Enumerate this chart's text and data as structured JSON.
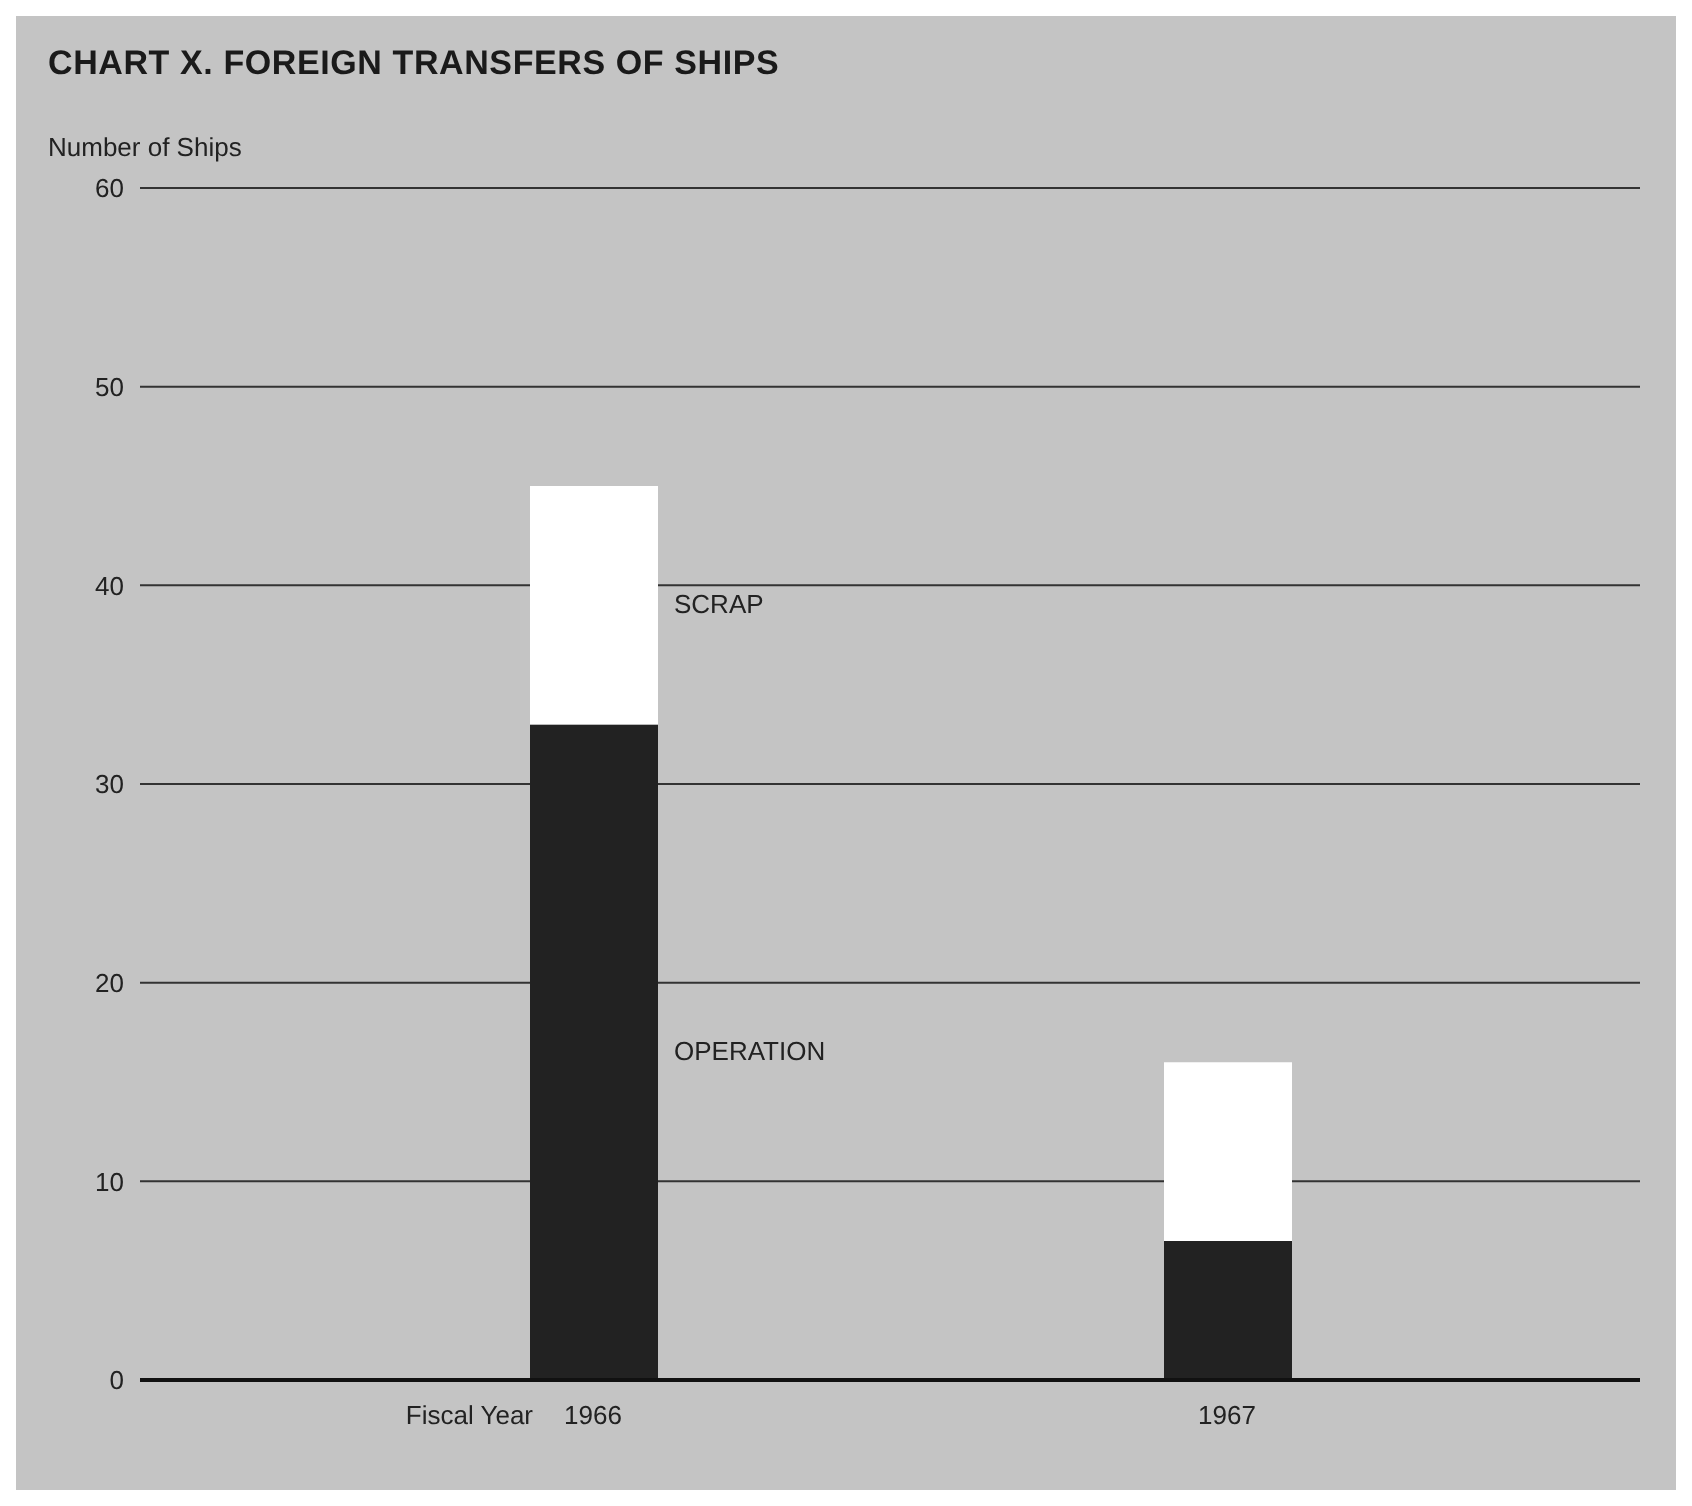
{
  "chart_data": {
    "type": "bar",
    "title": "CHART X.  FOREIGN TRANSFERS OF SHIPS",
    "ylabel": "Number of Ships",
    "xlabel": "Fiscal Year",
    "categories": [
      "1966",
      "1967"
    ],
    "stacked": true,
    "series": [
      {
        "name": "OPERATION",
        "color": "#222222",
        "values": [
          33,
          7
        ]
      },
      {
        "name": "SCRAP",
        "color": "#ffffff",
        "values": [
          12,
          9
        ]
      }
    ],
    "ylim": [
      0,
      60
    ],
    "yticks": [
      0,
      10,
      20,
      30,
      40,
      50,
      60
    ],
    "grid": "y"
  }
}
